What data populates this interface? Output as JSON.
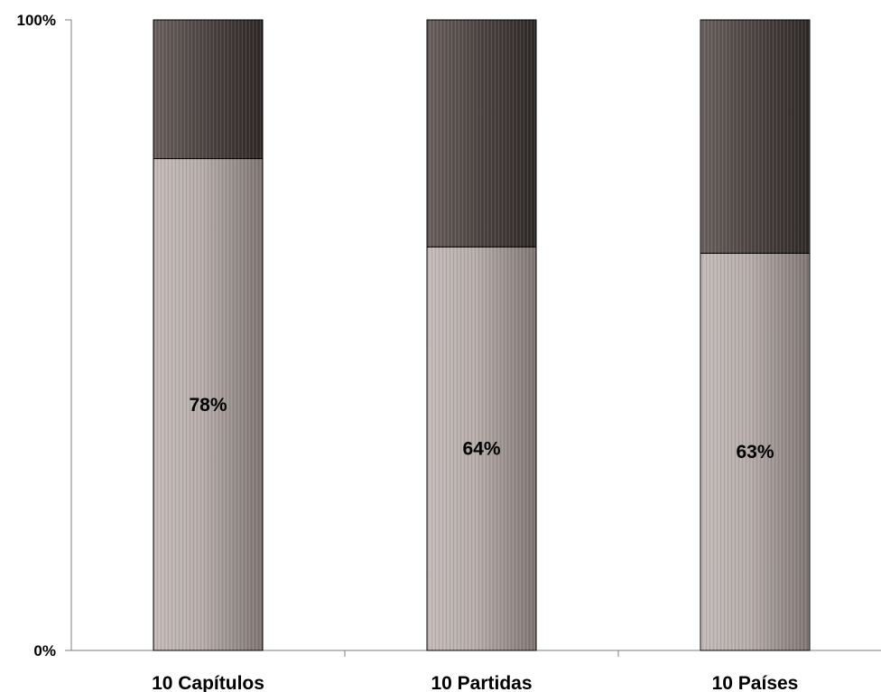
{
  "chart_data": {
    "type": "bar",
    "stacked": true,
    "percent_stacked": true,
    "categories": [
      "10 Capítulos",
      "10 Partidas",
      "10 Países"
    ],
    "series": [
      {
        "values": [
          78,
          64,
          63
        ],
        "color": "#b8aeac",
        "data_labels": [
          "78%",
          "64%",
          "63%"
        ]
      },
      {
        "values": [
          22,
          36,
          37
        ],
        "color": "#4a4240"
      }
    ],
    "ylim": [
      0,
      100
    ],
    "y_ticks": [
      "0%",
      "100%"
    ],
    "grid": false,
    "legend": "none"
  }
}
